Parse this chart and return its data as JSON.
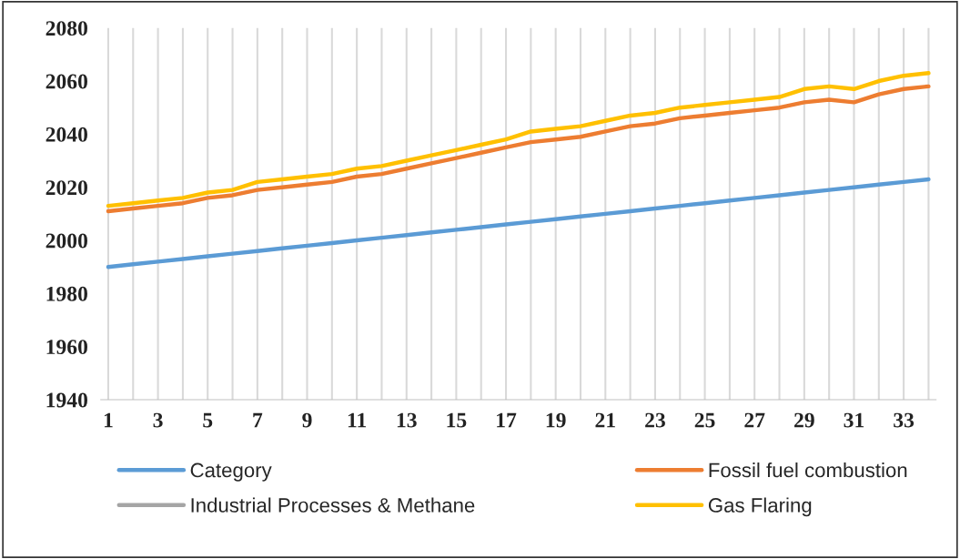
{
  "chart_data": {
    "type": "line",
    "categories": [
      "1",
      null,
      "3",
      null,
      "5",
      null,
      "7",
      null,
      "9",
      null,
      "11",
      null,
      "13",
      null,
      "15",
      null,
      "17",
      null,
      "19",
      null,
      "21",
      null,
      "23",
      null,
      "25",
      null,
      "27",
      null,
      "29",
      null,
      "31",
      null,
      "33",
      null
    ],
    "series": [
      {
        "name": "Category",
        "color": "#5b9bd5",
        "values": [
          1990,
          1991,
          1992,
          1993,
          1994,
          1995,
          1996,
          1997,
          1998,
          1999,
          2000,
          2001,
          2002,
          2003,
          2004,
          2005,
          2006,
          2007,
          2008,
          2009,
          2010,
          2011,
          2012,
          2013,
          2014,
          2015,
          2016,
          2017,
          2018,
          2019,
          2020,
          2021,
          2022,
          2023
        ]
      },
      {
        "name": "Fossil fuel combustion",
        "color": "#ed7d31",
        "values": [
          2011,
          2012,
          2013,
          2014,
          2016,
          2017,
          2019,
          2020,
          2021,
          2022,
          2024,
          2025,
          2027,
          2029,
          2031,
          2033,
          2035,
          2037,
          2038,
          2039,
          2041,
          2043,
          2044,
          2046,
          2047,
          2048,
          2049,
          2050,
          2052,
          2053,
          2052,
          2055,
          2057,
          2058
        ]
      },
      {
        "name": "Industrial Processes & Methane",
        "color": "#a5a5a5",
        "values": [
          null,
          null,
          null,
          null,
          null,
          null,
          null,
          null,
          null,
          null,
          null,
          null,
          null,
          null,
          null,
          null,
          null,
          null,
          null,
          null,
          null,
          null,
          null,
          null,
          null,
          null,
          null,
          null,
          null,
          null,
          null,
          null,
          null,
          null
        ]
      },
      {
        "name": "Gas Flaring",
        "color": "#ffc000",
        "values": [
          2013,
          2014,
          2015,
          2016,
          2018,
          2019,
          2022,
          2023,
          2024,
          2025,
          2027,
          2028,
          2030,
          2032,
          2034,
          2036,
          2038,
          2041,
          2042,
          2043,
          2045,
          2047,
          2048,
          2050,
          2051,
          2052,
          2053,
          2054,
          2057,
          2058,
          2057,
          2060,
          2062,
          2063
        ]
      }
    ],
    "ylim": [
      1940,
      2080
    ],
    "yticks": [
      1940,
      1960,
      1980,
      2000,
      2020,
      2040,
      2060,
      2080
    ],
    "grid": "x",
    "legend": "bottom",
    "marker": "none",
    "line_style": "solid"
  }
}
